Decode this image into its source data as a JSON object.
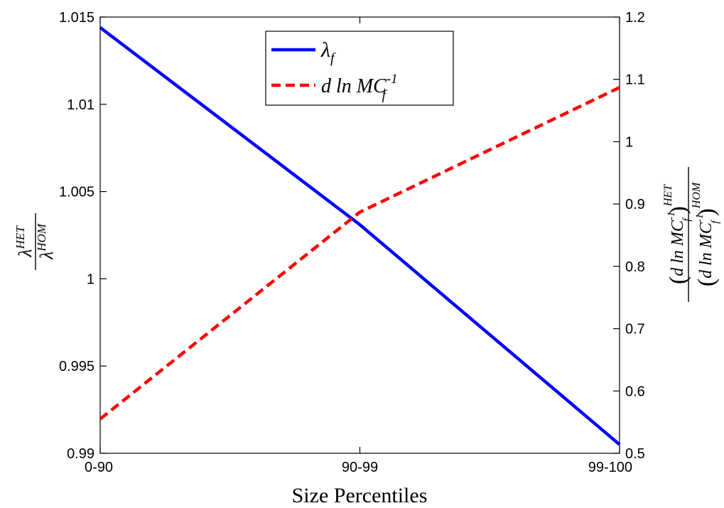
{
  "chart_data": {
    "type": "line",
    "categories": [
      "0-90",
      "90-99",
      "99-100"
    ],
    "xlabel": "Size Percentiles",
    "ylabel_left": {
      "numerator_base": "λ",
      "numerator_sup": "HET",
      "denominator_base": "λ",
      "denominator_sup": "HOM"
    },
    "ylabel_right": {
      "base": "d ln MC",
      "sub": "f",
      "exp": "-1",
      "numerator_sup": "HET",
      "denominator_sup": "HOM"
    },
    "ylim_left": [
      0.99,
      1.015
    ],
    "yticks_left": [
      0.99,
      0.995,
      1,
      1.005,
      1.01,
      1.015
    ],
    "ytick_labels_left": [
      "0.99",
      "0.995",
      "1",
      "1.005",
      "1.01",
      "1.015"
    ],
    "ylim_right": [
      0.5,
      1.2
    ],
    "yticks_right": [
      0.5,
      0.6,
      0.7,
      0.8,
      0.9,
      1,
      1.1,
      1.2
    ],
    "ytick_labels_right": [
      "0.5",
      "0.6",
      "0.7",
      "0.8",
      "0.9",
      "1",
      "1.1",
      "1.2"
    ],
    "grid": false,
    "legend_position": "top-center",
    "series": [
      {
        "name": "λ_f",
        "legend_base": "λ",
        "legend_sub": "f",
        "axis": "left",
        "values": [
          1.0144,
          1.0031,
          0.9905
        ],
        "color": "#0000ff",
        "style": "solid"
      },
      {
        "name": "d ln MC_f^-1",
        "legend_base": "d ln MC",
        "legend_sub": "f",
        "legend_sup": "-1",
        "axis": "right",
        "values": [
          0.555,
          0.887,
          1.087
        ],
        "color": "#ff0000",
        "style": "dashed"
      }
    ]
  }
}
